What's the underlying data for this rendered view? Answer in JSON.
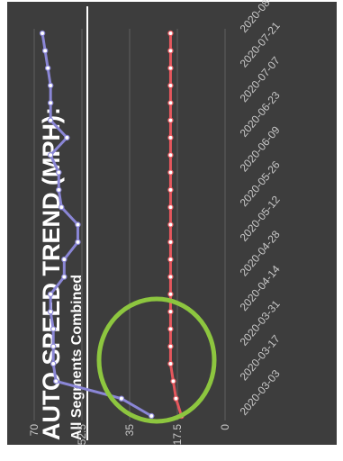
{
  "colors": {
    "background": "#3d3d3d",
    "text": "#ffffff",
    "grid": "#5e5e5e",
    "axis_text": "#c8c8c8",
    "highlight": "#8dc63f"
  },
  "chart_data": {
    "type": "line",
    "title": "AUTO SPEED TREND (MPH):",
    "subtitle": "All Segments Combined",
    "y_ticks": [
      "0",
      "17.5",
      "35",
      "52.5",
      "70"
    ],
    "ylim": [
      0,
      70
    ],
    "x_tick_labels": [
      "2020-03-03",
      "2020-03-17",
      "2020-03-31",
      "2020-04-14",
      "2020-04-28",
      "2020-05-12",
      "2020-05-26",
      "2020-06-09",
      "2020-06-23",
      "2020-07-07",
      "2020-07-21",
      "2020-08-04"
    ],
    "grid": true,
    "legend": "none",
    "annotation": "green ellipse highlighting the mid-March increase",
    "categories": [
      "2020-03-03",
      "2020-03-10",
      "2020-03-17",
      "2020-03-24",
      "2020-03-31",
      "2020-04-07",
      "2020-04-14",
      "2020-04-21",
      "2020-04-28",
      "2020-05-05",
      "2020-05-12",
      "2020-05-19",
      "2020-05-26",
      "2020-06-02",
      "2020-06-09",
      "2020-06-16",
      "2020-06-23",
      "2020-06-30",
      "2020-07-07",
      "2020-07-14",
      "2020-07-21",
      "2020-07-28",
      "2020-08-04"
    ],
    "series": [
      {
        "color": "#8a86d6",
        "values": [
          27,
          38,
          62,
          63,
          63,
          63,
          64,
          64,
          59,
          59,
          54,
          54,
          60,
          61,
          61,
          64,
          58,
          64,
          64,
          64,
          65,
          66,
          67
        ]
      },
      {
        "color": "#e4565c",
        "values": [
          16,
          18,
          19,
          20,
          20,
          20,
          20,
          20,
          20,
          20,
          20,
          20,
          20,
          20,
          20,
          20,
          20,
          20,
          20,
          20,
          20,
          20,
          20
        ]
      }
    ]
  }
}
